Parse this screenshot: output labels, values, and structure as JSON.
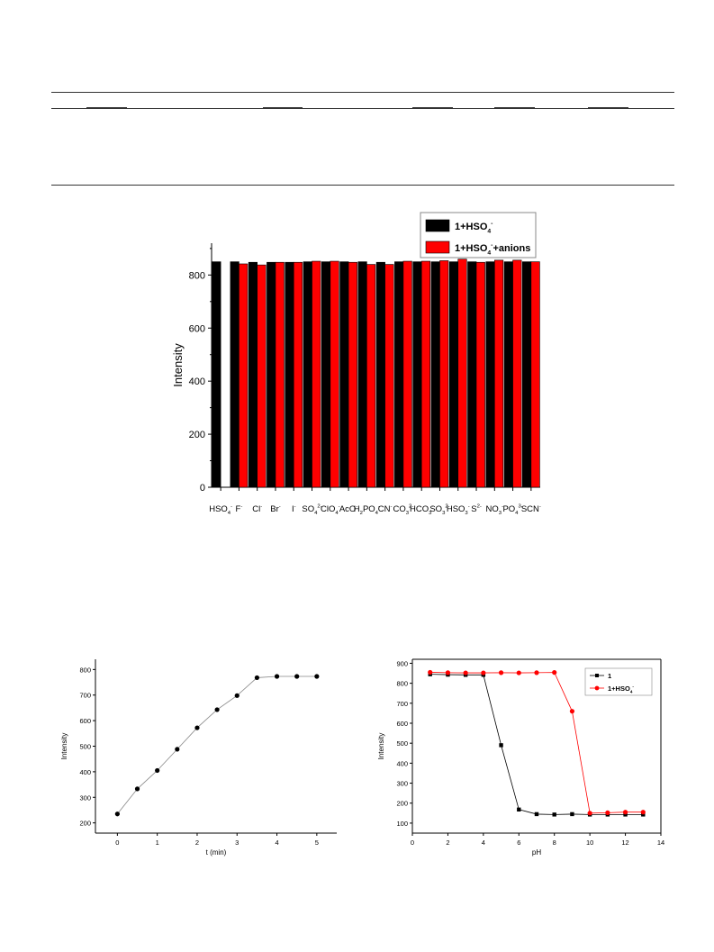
{
  "chart_data": [
    {
      "type": "bar",
      "categories": [
        {
          "base": "HSO",
          "sub": "4",
          "sup": "-"
        },
        {
          "base": "F",
          "sub": "",
          "sup": "-"
        },
        {
          "base": "Cl",
          "sub": "",
          "sup": "-"
        },
        {
          "base": "Br",
          "sub": "",
          "sup": "-"
        },
        {
          "base": "I",
          "sub": "",
          "sup": "-"
        },
        {
          "base": "SO",
          "sub": "4",
          "sup": "2-"
        },
        {
          "base": "ClO",
          "sub": "4",
          "sup": "-"
        },
        {
          "base": "AcO",
          "sub": "",
          "sup": "-"
        },
        {
          "base": "H",
          "sub": "2",
          "base2": "PO",
          "sub2": "4",
          "sup": "-"
        },
        {
          "base": "CN",
          "sub": "",
          "sup": "-"
        },
        {
          "base": "CO",
          "sub": "3",
          "sup": "2-"
        },
        {
          "base": "HCO",
          "sub": "3",
          "sup": "-"
        },
        {
          "base": "SO",
          "sub": "3",
          "sup": "2-"
        },
        {
          "base": "HSO",
          "sub": "3",
          "sup": "-"
        },
        {
          "base": "S",
          "sub": "",
          "sup": "2-"
        },
        {
          "base": "NO",
          "sub": "3",
          "sup": "-"
        },
        {
          "base": "PO",
          "sub": "4",
          "sup": "3-"
        },
        {
          "base": "SCN",
          "sub": "",
          "sup": "-"
        }
      ],
      "series": [
        {
          "name": "1+HSO4-",
          "legend": {
            "base": "1+HSO",
            "sub": "4",
            "sup": "-"
          },
          "color": "#000000",
          "values": [
            850,
            850,
            848,
            848,
            848,
            850,
            850,
            850,
            850,
            848,
            850,
            850,
            850,
            850,
            850,
            850,
            850,
            850
          ]
        },
        {
          "name": "1+HSO4-+anions",
          "legend": {
            "base": "1+HSO",
            "sub": "4",
            "sup": "-",
            "rest": "+anions"
          },
          "color": "#ff0000",
          "values": [
            null,
            842,
            838,
            848,
            848,
            852,
            852,
            848,
            840,
            840,
            852,
            852,
            854,
            860,
            848,
            856,
            856,
            850
          ]
        }
      ],
      "ylabel": "Intensity",
      "ylim": [
        0,
        920
      ],
      "yticks": [
        0,
        200,
        400,
        600,
        800
      ],
      "legend_position": "top-right"
    },
    {
      "type": "line",
      "x": [
        0,
        0.5,
        1,
        1.5,
        2,
        2.5,
        3,
        3.5,
        4,
        4.5,
        5
      ],
      "series": [
        {
          "values": [
            235,
            333,
            405,
            488,
            572,
            643,
            698,
            768,
            773,
            773,
            773
          ],
          "color": "#000000"
        }
      ],
      "xlabel": "t (min)",
      "ylabel": "Intensity",
      "xlim": [
        -0.55,
        5.5
      ],
      "ylim": [
        160,
        840
      ],
      "xticks": [
        0,
        1,
        2,
        3,
        4,
        5
      ],
      "yticks": [
        200,
        300,
        400,
        500,
        600,
        700,
        800
      ]
    },
    {
      "type": "line",
      "x": [
        1,
        2,
        3,
        4,
        5,
        6,
        7,
        8,
        9,
        10,
        11,
        12,
        13
      ],
      "series": [
        {
          "name": "1",
          "legend": {
            "base": "1",
            "sub": "",
            "sup": ""
          },
          "color": "#000000",
          "marker": "square",
          "values": [
            845,
            843,
            842,
            842,
            490,
            168,
            145,
            143,
            145,
            143,
            143,
            143,
            143
          ]
        },
        {
          "name": "1+HSO4-",
          "legend": {
            "base": "1+HSO",
            "sub": "4",
            "sup": "-"
          },
          "color": "#ff0000",
          "marker": "circle",
          "values": [
            855,
            853,
            852,
            852,
            853,
            852,
            853,
            854,
            660,
            150,
            152,
            155,
            155
          ]
        }
      ],
      "xlabel": "pH",
      "ylabel": "Intensity",
      "xlim": [
        0,
        14
      ],
      "ylim": [
        50,
        920
      ],
      "xticks": [
        0,
        2,
        4,
        6,
        8,
        10,
        12,
        14
      ],
      "yticks": [
        100,
        200,
        300,
        400,
        500,
        600,
        700,
        800,
        900
      ],
      "legend_position": "top-right"
    }
  ]
}
